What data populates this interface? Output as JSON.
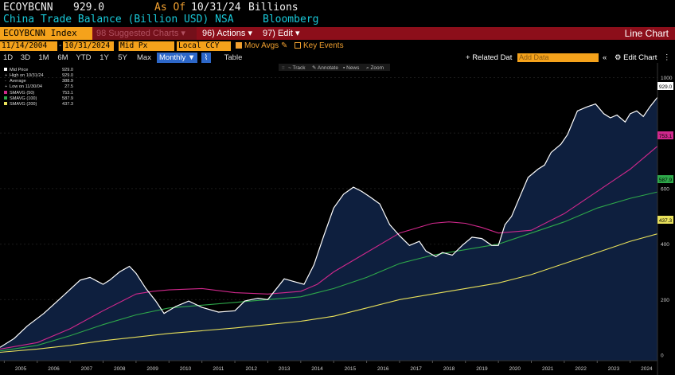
{
  "header": {
    "ticker": "ECOYBCNN",
    "last_value": "929.0",
    "as_of_label": "As Of",
    "as_of_date": "10/31/24",
    "units": "Billions",
    "series_title": "China Trade Balance (Billion USD) NSA",
    "source": "Bloomberg"
  },
  "menubar": {
    "ticker_field": "ECOYBCNN Index",
    "suggested_charts": "98 Suggested Charts",
    "actions": "96) Actions",
    "edit": "97) Edit",
    "chart_type": "Line Chart"
  },
  "controls": {
    "start_date": "11/14/2004",
    "end_date": "10/31/2024",
    "price_field": "Mid Px",
    "currency": "Local CCY",
    "mov_avgs": "Mov Avgs",
    "key_events": "Key Events"
  },
  "ranges": {
    "items": [
      "1D",
      "3D",
      "1M",
      "6M",
      "YTD",
      "1Y",
      "5Y",
      "Max"
    ],
    "frequency": "Monthly",
    "table": "Table",
    "related_data": "Related Dat",
    "add_data_placeholder": "Add Data",
    "edit_chart": "Edit Chart"
  },
  "toolbar": {
    "track": "Track",
    "annotate": "Annotate",
    "news": "News",
    "zoom": "Zoom"
  },
  "legend": {
    "mid_price": {
      "label": "Mid Price",
      "value": "929.0"
    },
    "high": {
      "label": "High on 10/31/24",
      "value": "929.0"
    },
    "average": {
      "label": "Average",
      "value": "388.9"
    },
    "low": {
      "label": "Low on 11/30/04",
      "value": "27.5"
    },
    "smavg50": {
      "label": "SMAVG (50)",
      "value": "753.1"
    },
    "smavg100": {
      "label": "SMAVG (100)",
      "value": "587.9"
    },
    "smavg200": {
      "label": "SMAVG (200)",
      "value": "437.3"
    }
  },
  "colors": {
    "price": "#ffffff",
    "area_fill": "#0e1f3e",
    "smavg50": "#d0288c",
    "smavg100": "#2ea84a",
    "smavg200": "#e8e05a",
    "bloomberg_orange": "#f5a21b",
    "menu_red": "#8c0e1a"
  },
  "chart_data": {
    "type": "line",
    "title": "China Trade Balance (Billion USD) NSA",
    "xlabel": "",
    "ylabel": "",
    "xlim": [
      2004.87,
      2024.83
    ],
    "ylim": [
      -20,
      1030
    ],
    "y_ticks": [
      0,
      200,
      400,
      600,
      800,
      1000
    ],
    "y_tick_labels": [
      "0",
      "200",
      "400",
      "600",
      "800",
      "1000"
    ],
    "x_ticks": [
      2005,
      2006,
      2007,
      2008,
      2009,
      2010,
      2011,
      2012,
      2013,
      2014,
      2015,
      2016,
      2017,
      2018,
      2019,
      2020,
      2021,
      2022,
      2023,
      2024
    ],
    "x_tick_labels": [
      "2005",
      "2006",
      "2007",
      "2008",
      "2009",
      "2010",
      "2011",
      "2012",
      "2013",
      "2014",
      "2015",
      "2016",
      "2017",
      "2018",
      "2019",
      "2020",
      "2021",
      "2022",
      "2023",
      "2024"
    ],
    "last_value_tags": [
      "929.0",
      "753.1",
      "587.9",
      "437.3"
    ],
    "series": [
      {
        "name": "Mid Price",
        "x": [
          2004.87,
          2005.3,
          2005.7,
          2006.2,
          2006.8,
          2007.3,
          2007.6,
          2008.0,
          2008.2,
          2008.5,
          2008.8,
          2009.0,
          2009.3,
          2009.6,
          2009.85,
          2010.2,
          2010.6,
          2011.0,
          2011.5,
          2012.0,
          2012.3,
          2012.7,
          2013.0,
          2013.5,
          2013.8,
          2014.1,
          2014.4,
          2014.7,
          2015.0,
          2015.3,
          2015.6,
          2015.85,
          2016.1,
          2016.4,
          2016.7,
          2017.0,
          2017.3,
          2017.6,
          2017.8,
          2018.1,
          2018.3,
          2018.6,
          2018.9,
          2019.2,
          2019.5,
          2019.8,
          2020.0,
          2020.2,
          2020.4,
          2020.65,
          2020.9,
          2021.2,
          2021.4,
          2021.6,
          2021.9,
          2022.1,
          2022.4,
          2022.7,
          2022.95,
          2023.2,
          2023.4,
          2023.6,
          2023.85,
          2024.0,
          2024.2,
          2024.4,
          2024.6,
          2024.83
        ],
        "y": [
          28,
          60,
          105,
          150,
          215,
          270,
          280,
          255,
          270,
          300,
          320,
          295,
          240,
          195,
          150,
          175,
          195,
          172,
          155,
          160,
          195,
          205,
          200,
          275,
          265,
          255,
          325,
          430,
          530,
          580,
          605,
          590,
          570,
          545,
          470,
          430,
          395,
          410,
          375,
          355,
          370,
          360,
          395,
          425,
          420,
          395,
          395,
          470,
          500,
          570,
          640,
          670,
          685,
          730,
          760,
          795,
          880,
          895,
          905,
          870,
          855,
          865,
          840,
          870,
          880,
          860,
          895,
          929
        ]
      },
      {
        "name": "SMAVG (50)",
        "x": [
          2004.87,
          2006.0,
          2007.0,
          2008.0,
          2009.0,
          2009.5,
          2010.0,
          2011.0,
          2012.0,
          2013.0,
          2014.0,
          2014.5,
          2015.0,
          2016.0,
          2017.0,
          2018.0,
          2018.5,
          2019.0,
          2019.5,
          2020.0,
          2021.0,
          2022.0,
          2023.0,
          2024.0,
          2024.83
        ],
        "y": [
          22,
          45,
          95,
          160,
          220,
          230,
          235,
          240,
          225,
          220,
          230,
          255,
          300,
          370,
          440,
          475,
          480,
          475,
          460,
          440,
          450,
          510,
          590,
          670,
          753
        ]
      },
      {
        "name": "SMAVG (100)",
        "x": [
          2004.87,
          2006.0,
          2007.0,
          2008.0,
          2009.0,
          2010.0,
          2011.0,
          2012.0,
          2013.0,
          2014.0,
          2015.0,
          2016.0,
          2017.0,
          2018.0,
          2019.0,
          2020.0,
          2021.0,
          2022.0,
          2023.0,
          2024.0,
          2024.83
        ],
        "y": [
          15,
          35,
          70,
          110,
          145,
          170,
          180,
          190,
          200,
          210,
          240,
          280,
          330,
          360,
          380,
          400,
          440,
          480,
          530,
          565,
          588
        ]
      },
      {
        "name": "SMAVG (200)",
        "x": [
          2004.87,
          2006.0,
          2007.0,
          2008.0,
          2009.0,
          2010.0,
          2011.0,
          2012.0,
          2013.0,
          2014.0,
          2015.0,
          2016.0,
          2017.0,
          2018.0,
          2019.0,
          2020.0,
          2021.0,
          2022.0,
          2023.0,
          2024.0,
          2024.83
        ],
        "y": [
          10,
          22,
          35,
          52,
          65,
          78,
          88,
          98,
          110,
          122,
          140,
          170,
          200,
          220,
          240,
          260,
          290,
          330,
          370,
          410,
          437
        ]
      }
    ]
  }
}
